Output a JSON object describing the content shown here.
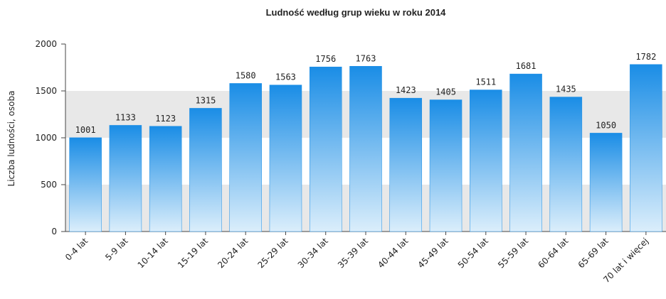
{
  "chart_data": {
    "type": "bar",
    "title": "Ludność według grup wieku w roku 2014",
    "y_label": "Liczba ludności, osoba",
    "categories": [
      "0-4 lat",
      "5-9 lat",
      "10-14 lat",
      "15-19 lat",
      "20-24 lat",
      "25-29 lat",
      "30-34 lat",
      "35-39 lat",
      "40-44 lat",
      "45-49 lat",
      "50-54 lat",
      "55-59 lat",
      "60-64 lat",
      "65-69 lat",
      "70 lat i więcej"
    ],
    "values": [
      1001,
      1133,
      1123,
      1315,
      1580,
      1563,
      1756,
      1763,
      1423,
      1405,
      1511,
      1681,
      1435,
      1050,
      1782
    ],
    "color": "#1a8de6",
    "ylim": [
      0,
      2000
    ],
    "yticks": [
      0,
      500,
      1000,
      1500,
      2000
    ],
    "grid": true
  }
}
